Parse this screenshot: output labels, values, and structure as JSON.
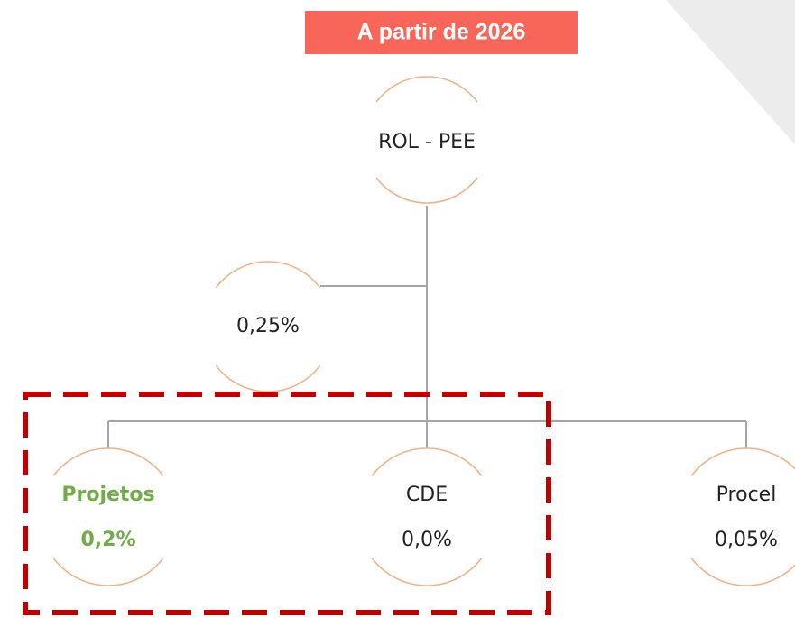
{
  "banner": "A partir de 2026",
  "nodes": [
    {
      "label": "ROL - PEE"
    },
    {
      "label": "0,25%"
    },
    {
      "label": "Projetos",
      "value": "0,2%"
    },
    {
      "label": "CDE",
      "value": "0,0%"
    },
    {
      "label": "Procel",
      "value": "0,05%"
    }
  ]
}
